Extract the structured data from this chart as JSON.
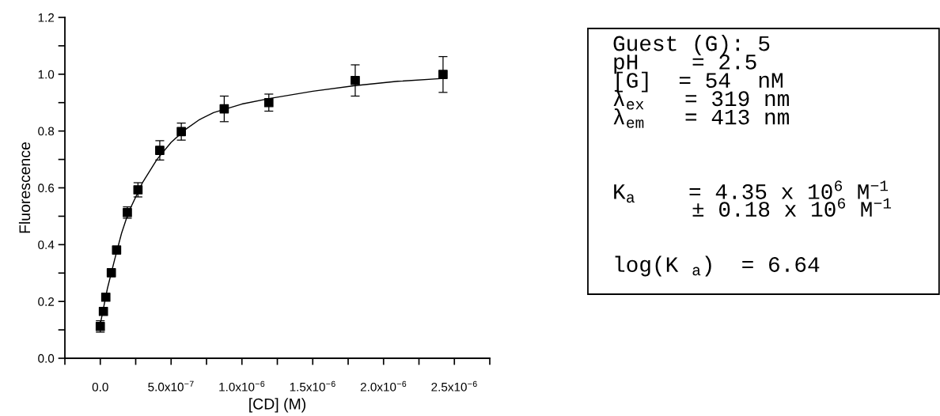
{
  "chart_data": {
    "type": "scatter",
    "xlabel": "[CD] (M)",
    "ylabel": "Fluorescence",
    "xlim": [
      -2.5e-07,
      2.75e-06
    ],
    "ylim": [
      0,
      1.2
    ],
    "xticks": [
      {
        "value": -2.5e-07,
        "label": null
      },
      {
        "value": 0,
        "label": "0.0"
      },
      {
        "value": 2.5e-07,
        "label": null
      },
      {
        "value": 5e-07,
        "label": "5.0x10$^{−7}$"
      },
      {
        "value": 7.5e-07,
        "label": null
      },
      {
        "value": 1e-06,
        "label": "1.0x10$^{−6}$"
      },
      {
        "value": 1.25e-06,
        "label": null
      },
      {
        "value": 1.5e-06,
        "label": "1.5x10$^{−6}$"
      },
      {
        "value": 1.75e-06,
        "label": null
      },
      {
        "value": 2e-06,
        "label": "2.0x10$^{−6}$"
      },
      {
        "value": 2.25e-06,
        "label": null
      },
      {
        "value": 2.5e-06,
        "label": "2.5x10$^{−6}$"
      },
      {
        "value": 2.75e-06,
        "label": null
      }
    ],
    "yticks": [
      {
        "value": 0,
        "label": "0.0"
      },
      {
        "value": 0.1,
        "label": null
      },
      {
        "value": 0.2,
        "label": "0.2"
      },
      {
        "value": 0.3,
        "label": null
      },
      {
        "value": 0.4,
        "label": "0.4"
      },
      {
        "value": 0.5,
        "label": null
      },
      {
        "value": 0.6,
        "label": "0.6"
      },
      {
        "value": 0.7,
        "label": null
      },
      {
        "value": 0.8,
        "label": "0.8"
      },
      {
        "value": 0.9,
        "label": null
      },
      {
        "value": 1.0,
        "label": "1.0"
      },
      {
        "value": 1.1,
        "label": null
      },
      {
        "value": 1.2,
        "label": "1.2"
      }
    ],
    "grid": false,
    "series": [
      {
        "color": "#000000",
        "marker": "square",
        "x": [
          0,
          2.2e-08,
          3.9e-08,
          7.8e-08,
          1.15e-07,
          1.91e-07,
          2.66e-07,
          4.2e-07,
          5.72e-07,
          8.75e-07,
          1.19e-06,
          1.8e-06,
          2.42e-06
        ],
        "values": [
          0.112,
          0.165,
          0.215,
          0.301,
          0.381,
          0.513,
          0.593,
          0.732,
          0.798,
          0.878,
          0.9,
          0.978,
          0.999
        ],
        "errors": [
          0.02,
          null,
          null,
          null,
          null,
          0.02,
          0.025,
          0.034,
          0.03,
          0.045,
          0.03,
          0.055,
          0.063
        ]
      },
      {
        "type": "line",
        "color": "#000000",
        "marker": "none",
        "line_style": "solid",
        "x": [
          0,
          2e-08,
          5e-08,
          1e-07,
          1.5e-07,
          2e-07,
          3e-07,
          4e-07,
          5e-07,
          6e-07,
          7e-07,
          8e-07,
          1e-06,
          1.2e-06,
          1.5e-06,
          1.8e-06,
          2.1e-06,
          2.42e-06
        ],
        "values": [
          0.12,
          0.17,
          0.245,
          0.345,
          0.44,
          0.515,
          0.62,
          0.7,
          0.76,
          0.805,
          0.84,
          0.865,
          0.895,
          0.915,
          0.94,
          0.96,
          0.975,
          0.985
        ]
      }
    ],
    "annotations": [
      "Guest (G): 5",
      "pH    = 2.5",
      "[G]  = 54  nM",
      "λ$_{ex}$   = 319 nm",
      "λ$_{em}$   = 413 nm",
      "K$_{a}$    = 4.35 x 10$^{6}$ M$^{−1}$",
      "      ± 0.18 x 10$^{6}$ M$^{−1}$",
      "log(K $_{a}$)  = 6.64"
    ]
  }
}
